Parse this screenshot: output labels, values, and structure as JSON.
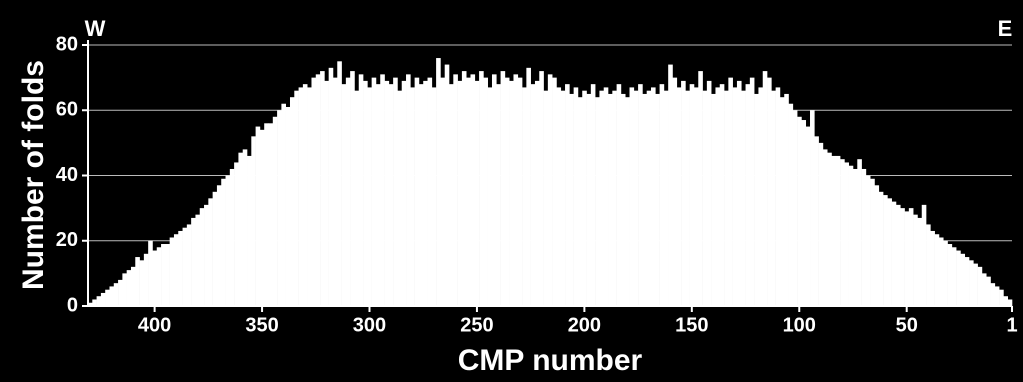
{
  "chart_data": {
    "type": "bar",
    "xlabel": "CMP number",
    "ylabel": "Number of folds",
    "annotations": [
      "W",
      "E"
    ],
    "color": "#ffffff",
    "grid": true,
    "xlim": [
      431,
      1
    ],
    "xticks": [
      400,
      350,
      300,
      250,
      200,
      150,
      100,
      50,
      1
    ],
    "ylim": [
      0,
      80
    ],
    "yticks": [
      0,
      20,
      40,
      60,
      80
    ],
    "x": [
      430,
      428,
      426,
      424,
      422,
      420,
      418,
      416,
      414,
      412,
      410,
      408,
      406,
      404,
      402,
      400,
      398,
      396,
      394,
      392,
      390,
      388,
      386,
      384,
      382,
      380,
      378,
      376,
      374,
      372,
      370,
      368,
      366,
      364,
      362,
      360,
      358,
      356,
      354,
      352,
      350,
      348,
      346,
      344,
      342,
      340,
      338,
      336,
      334,
      332,
      330,
      328,
      326,
      324,
      322,
      320,
      318,
      316,
      314,
      312,
      310,
      308,
      306,
      304,
      302,
      300,
      298,
      296,
      294,
      292,
      290,
      288,
      286,
      284,
      282,
      280,
      278,
      276,
      274,
      272,
      270,
      268,
      266,
      264,
      262,
      260,
      258,
      256,
      254,
      252,
      250,
      248,
      246,
      244,
      242,
      240,
      238,
      236,
      234,
      232,
      230,
      228,
      226,
      224,
      222,
      220,
      218,
      216,
      214,
      212,
      210,
      208,
      206,
      204,
      202,
      200,
      198,
      196,
      194,
      192,
      190,
      188,
      186,
      184,
      182,
      180,
      178,
      176,
      174,
      172,
      170,
      168,
      166,
      164,
      162,
      160,
      158,
      156,
      154,
      152,
      150,
      148,
      146,
      144,
      142,
      140,
      138,
      136,
      134,
      132,
      130,
      128,
      126,
      124,
      122,
      120,
      118,
      116,
      114,
      112,
      110,
      108,
      106,
      104,
      102,
      100,
      98,
      96,
      94,
      92,
      90,
      88,
      86,
      84,
      82,
      80,
      78,
      76,
      74,
      72,
      70,
      68,
      66,
      64,
      62,
      60,
      58,
      56,
      54,
      52,
      50,
      48,
      46,
      44,
      42,
      40,
      38,
      36,
      34,
      32,
      30,
      28,
      26,
      24,
      22,
      20,
      18,
      16,
      14,
      12,
      10,
      8,
      6,
      4,
      2
    ],
    "values": [
      1,
      2,
      3,
      4,
      5,
      6,
      7,
      8,
      10,
      11,
      12,
      15,
      14,
      16,
      20,
      17,
      18,
      19,
      19,
      21,
      22,
      23,
      24,
      25,
      27,
      28,
      30,
      31,
      33,
      35,
      37,
      39,
      40,
      42,
      44,
      47,
      48,
      46,
      52,
      55,
      54,
      56,
      56,
      58,
      60,
      62,
      61,
      64,
      66,
      67,
      68,
      67,
      70,
      71,
      72,
      69,
      73,
      70,
      75,
      68,
      70,
      72,
      66,
      71,
      69,
      67,
      70,
      68,
      71,
      69,
      68,
      70,
      66,
      69,
      71,
      67,
      70,
      68,
      69,
      70,
      67,
      76,
      70,
      74,
      68,
      71,
      69,
      72,
      70,
      71,
      69,
      72,
      70,
      67,
      71,
      68,
      72,
      70,
      69,
      71,
      70,
      67,
      73,
      68,
      69,
      72,
      66,
      71,
      70,
      67,
      66,
      68,
      65,
      67,
      64,
      66,
      65,
      68,
      64,
      66,
      67,
      65,
      66,
      68,
      65,
      64,
      67,
      66,
      68,
      65,
      66,
      67,
      65,
      68,
      66,
      74,
      70,
      67,
      69,
      66,
      68,
      67,
      72,
      66,
      69,
      65,
      67,
      68,
      66,
      70,
      67,
      69,
      66,
      68,
      70,
      65,
      67,
      72,
      70,
      66,
      67,
      64,
      65,
      62,
      60,
      58,
      57,
      55,
      60,
      52,
      50,
      48,
      47,
      46,
      46,
      45,
      44,
      43,
      42,
      45,
      42,
      40,
      39,
      37,
      35,
      34,
      33,
      32,
      31,
      30,
      29,
      30,
      28,
      27,
      31,
      25,
      23,
      22,
      21,
      20,
      19,
      18,
      17,
      16,
      15,
      14,
      13,
      12,
      10,
      9,
      7,
      6,
      5,
      3,
      2
    ]
  }
}
